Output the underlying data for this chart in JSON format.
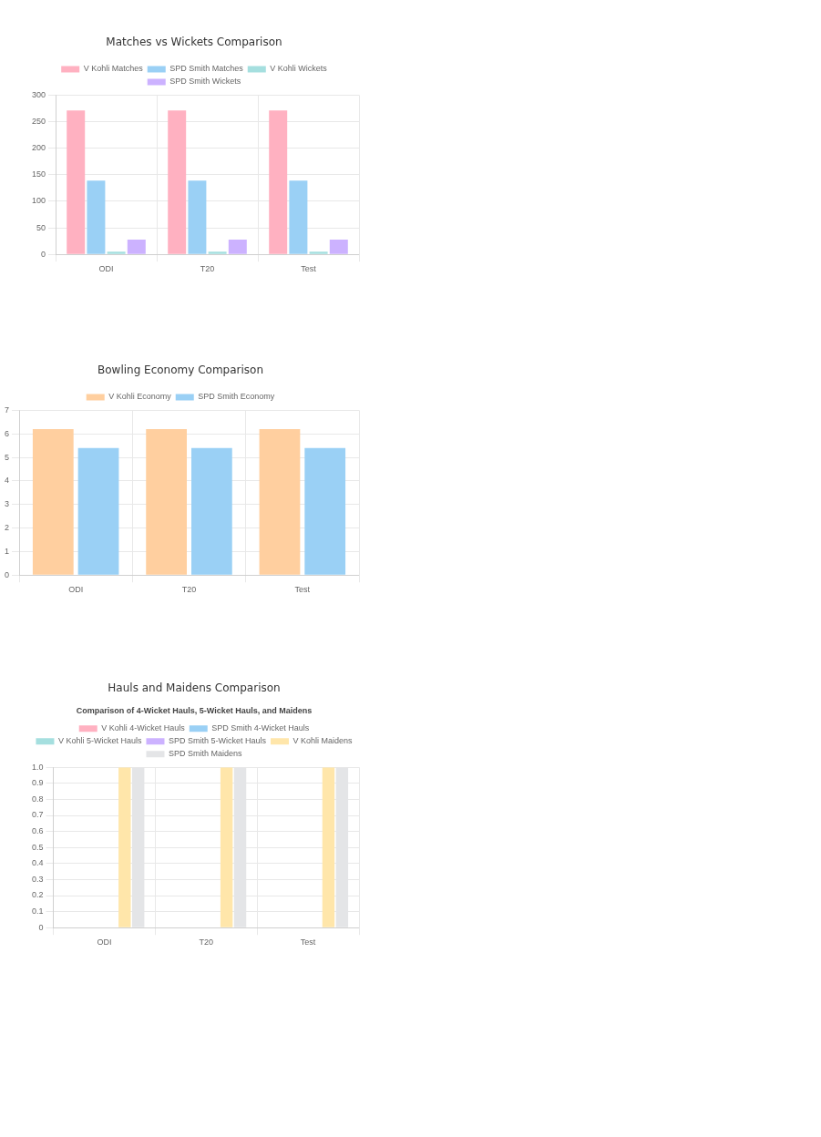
{
  "chart_data": [
    {
      "type": "bar",
      "title": "Matches vs Wickets Comparison",
      "categories": [
        "ODI",
        "T20",
        "Test"
      ],
      "series": [
        {
          "name": "V Kohli Matches",
          "color": "#ffb1c1",
          "values": [
            271,
            271,
            271
          ]
        },
        {
          "name": "SPD Smith Matches",
          "color": "#9ad0f5",
          "values": [
            139,
            139,
            139
          ]
        },
        {
          "name": "V Kohli Wickets",
          "color": "#a5dfdf",
          "values": [
            5,
            5,
            5
          ]
        },
        {
          "name": "SPD Smith Wickets",
          "color": "#ccb2ff",
          "values": [
            28,
            28,
            28
          ]
        }
      ],
      "ylim": [
        0,
        300
      ],
      "yticks": [
        0,
        50,
        100,
        150,
        200,
        250,
        300
      ],
      "grid": true,
      "legend": "top"
    },
    {
      "type": "bar",
      "title": "Bowling Economy Comparison",
      "categories": [
        "ODI",
        "T20",
        "Test"
      ],
      "series": [
        {
          "name": "V Kohli Economy",
          "color": "#ffcf9f",
          "values": [
            6.2,
            6.2,
            6.2
          ]
        },
        {
          "name": "SPD Smith Economy",
          "color": "#9ad0f5",
          "values": [
            5.4,
            5.4,
            5.4
          ]
        }
      ],
      "ylim": [
        0,
        7
      ],
      "yticks": [
        0,
        1,
        2,
        3,
        4,
        5,
        6,
        7
      ],
      "grid": true,
      "legend": "top"
    },
    {
      "type": "bar",
      "title": "Hauls and Maidens Comparison",
      "subtitle": "Comparison of 4-Wicket Hauls, 5-Wicket Hauls, and Maidens",
      "categories": [
        "ODI",
        "T20",
        "Test"
      ],
      "series": [
        {
          "name": "V Kohli 4-Wicket Hauls",
          "color": "#ffb1c1",
          "values": [
            0,
            0,
            0
          ]
        },
        {
          "name": "SPD Smith 4-Wicket Hauls",
          "color": "#9ad0f5",
          "values": [
            0,
            0,
            0
          ]
        },
        {
          "name": "V Kohli 5-Wicket Hauls",
          "color": "#a5dfdf",
          "values": [
            0,
            0,
            0
          ]
        },
        {
          "name": "SPD Smith 5-Wicket Hauls",
          "color": "#ccb2ff",
          "values": [
            0,
            0,
            0
          ]
        },
        {
          "name": "V Kohli Maidens",
          "color": "#ffe6aa",
          "values": [
            1,
            1,
            1
          ]
        },
        {
          "name": "SPD Smith Maidens",
          "color": "#e4e5e7",
          "values": [
            1,
            1,
            1
          ]
        }
      ],
      "ylim": [
        0,
        1
      ],
      "yticks": [
        0,
        0.1,
        0.2,
        0.3,
        0.4,
        0.5,
        0.6,
        0.7,
        0.8,
        0.9,
        {
          "value": 1,
          "label": "1.0"
        }
      ],
      "grid": true,
      "legend": "top"
    }
  ]
}
